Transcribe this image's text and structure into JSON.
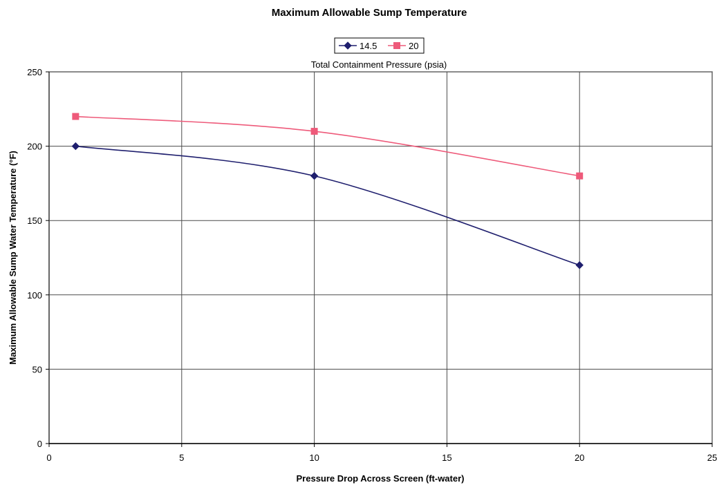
{
  "chart_data": {
    "type": "line",
    "title": "Maximum Allowable Sump Temperature",
    "xlabel": "Pressure Drop Across Screen (ft-water)",
    "ylabel": "Maximum Allowable Sump Water Temperature (°F)",
    "xlim": [
      0,
      25
    ],
    "ylim": [
      0,
      250
    ],
    "x_ticks": [
      "0",
      "5",
      "10",
      "15",
      "20",
      "25"
    ],
    "y_ticks": [
      "0",
      "50",
      "100",
      "150",
      "200",
      "250"
    ],
    "grid": true,
    "legend_title": "Total Containment Pressure (psia)",
    "legend_position": "top-center",
    "series": [
      {
        "name": "14.5",
        "color": "#1f1f6e",
        "marker": "diamond",
        "points": [
          {
            "x": 1,
            "y": 200
          },
          {
            "x": 10,
            "y": 180
          },
          {
            "x": 20,
            "y": 120
          }
        ]
      },
      {
        "name": "20",
        "color": "#ee5a7a",
        "marker": "square",
        "points": [
          {
            "x": 1,
            "y": 220
          },
          {
            "x": 10,
            "y": 210
          },
          {
            "x": 20,
            "y": 180
          }
        ]
      }
    ]
  }
}
